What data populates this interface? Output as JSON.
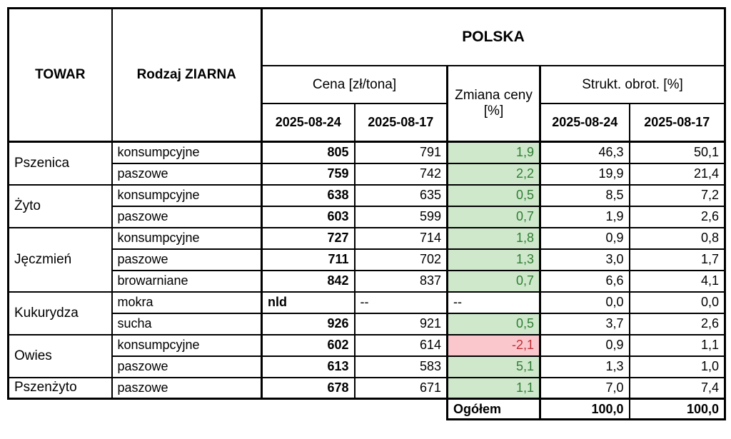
{
  "header": {
    "towar": "TOWAR",
    "rodzaj": "Rodzaj ZIARNA",
    "region": "POLSKA",
    "cena": "Cena [zł/tona]",
    "zmiana": "Zmiana ceny [%]",
    "strukt": "Strukt. obrot. [%]",
    "date_current": "2025-08-24",
    "date_previous": "2025-08-17"
  },
  "colors": {
    "positive_bg": "#cfe8cc",
    "positive_text": "#2f7d33",
    "negative_bg": "#f9c7cc",
    "negative_text": "#bf3038",
    "border": "#000000",
    "text": "#000000"
  },
  "groups": [
    {
      "towar": "Pszenica",
      "rows": [
        {
          "rodzaj": "konsumpcyjne",
          "cena_current": "805",
          "cena_previous": "791",
          "zmiana": "1,9",
          "zmiana_state": "up",
          "strukt_current": "46,3",
          "strukt_previous": "50,1"
        },
        {
          "rodzaj": "paszowe",
          "cena_current": "759",
          "cena_previous": "742",
          "zmiana": "2,2",
          "zmiana_state": "up",
          "strukt_current": "19,9",
          "strukt_previous": "21,4"
        }
      ]
    },
    {
      "towar": "Żyto",
      "rows": [
        {
          "rodzaj": "konsumpcyjne",
          "cena_current": "638",
          "cena_previous": "635",
          "zmiana": "0,5",
          "zmiana_state": "up",
          "strukt_current": "8,5",
          "strukt_previous": "7,2"
        },
        {
          "rodzaj": "paszowe",
          "cena_current": "603",
          "cena_previous": "599",
          "zmiana": "0,7",
          "zmiana_state": "up",
          "strukt_current": "1,9",
          "strukt_previous": "2,6"
        }
      ]
    },
    {
      "towar": "Jęczmień",
      "rows": [
        {
          "rodzaj": "konsumpcyjne",
          "cena_current": "727",
          "cena_previous": "714",
          "zmiana": "1,8",
          "zmiana_state": "up",
          "strukt_current": "0,9",
          "strukt_previous": "0,8"
        },
        {
          "rodzaj": "paszowe",
          "cena_current": "711",
          "cena_previous": "702",
          "zmiana": "1,3",
          "zmiana_state": "up",
          "strukt_current": "3,0",
          "strukt_previous": "1,7"
        },
        {
          "rodzaj": "browarniane",
          "cena_current": "842",
          "cena_previous": "837",
          "zmiana": "0,7",
          "zmiana_state": "up",
          "strukt_current": "6,6",
          "strukt_previous": "4,1"
        }
      ]
    },
    {
      "towar": "Kukurydza",
      "rows": [
        {
          "rodzaj": "mokra",
          "cena_current": "nld",
          "cena_previous": "--",
          "zmiana": "--",
          "zmiana_state": "none",
          "strukt_current": "0,0",
          "strukt_previous": "0,0"
        },
        {
          "rodzaj": "sucha",
          "cena_current": "926",
          "cena_previous": "921",
          "zmiana": "0,5",
          "zmiana_state": "up",
          "strukt_current": "3,7",
          "strukt_previous": "2,6"
        }
      ]
    },
    {
      "towar": "Owies",
      "rows": [
        {
          "rodzaj": "konsumpcyjne",
          "cena_current": "602",
          "cena_previous": "614",
          "zmiana": "-2,1",
          "zmiana_state": "down",
          "strukt_current": "0,9",
          "strukt_previous": "1,1"
        },
        {
          "rodzaj": "paszowe",
          "cena_current": "613",
          "cena_previous": "583",
          "zmiana": "5,1",
          "zmiana_state": "up",
          "strukt_current": "1,3",
          "strukt_previous": "1,0"
        }
      ]
    },
    {
      "towar": "Pszenżyto",
      "rows": [
        {
          "rodzaj": "paszowe",
          "cena_current": "678",
          "cena_previous": "671",
          "zmiana": "1,1",
          "zmiana_state": "up",
          "strukt_current": "7,0",
          "strukt_previous": "7,4"
        }
      ]
    }
  ],
  "footer": {
    "label": "Ogółem",
    "strukt_current": "100,0",
    "strukt_previous": "100,0"
  }
}
